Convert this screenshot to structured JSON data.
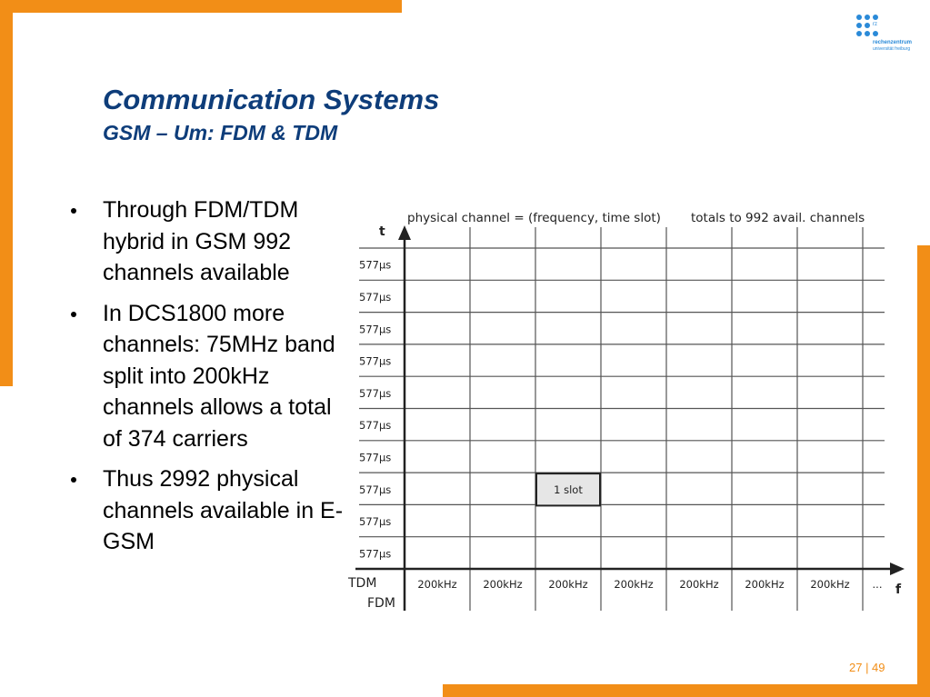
{
  "slide": {
    "title": "Communication Systems",
    "subtitle": "GSM – Um: FDM & TDM",
    "bullets": [
      "Through FDM/TDM hybrid in GSM 992 channels available",
      "In DCS1800 more channels: 75MHz band split into 200kHz channels allows a total of 374 carriers",
      "Thus 2992 physical channels available in E-GSM"
    ],
    "page_number": "27 | 49",
    "accent_color": "#f28e17",
    "title_color": "#0e3d7a"
  },
  "logo": {
    "line1": "rz",
    "line2": "rechenzentrum",
    "line3": "universität freiburg"
  },
  "diagram": {
    "caption": "physical channel = (frequency, time slot)",
    "caption_right": "totals to 992 avail. channels",
    "t_axis_label": "t",
    "f_axis_label": "f",
    "tdm_label": "TDM",
    "fdm_label": "FDM",
    "time_slot_label": "577μs",
    "time_slot_count": 10,
    "freq_label": "200kHz",
    "freq_count": 7,
    "ellipsis": "...",
    "slot_label": "1 slot",
    "slot_column": 2,
    "slot_row": 7
  }
}
